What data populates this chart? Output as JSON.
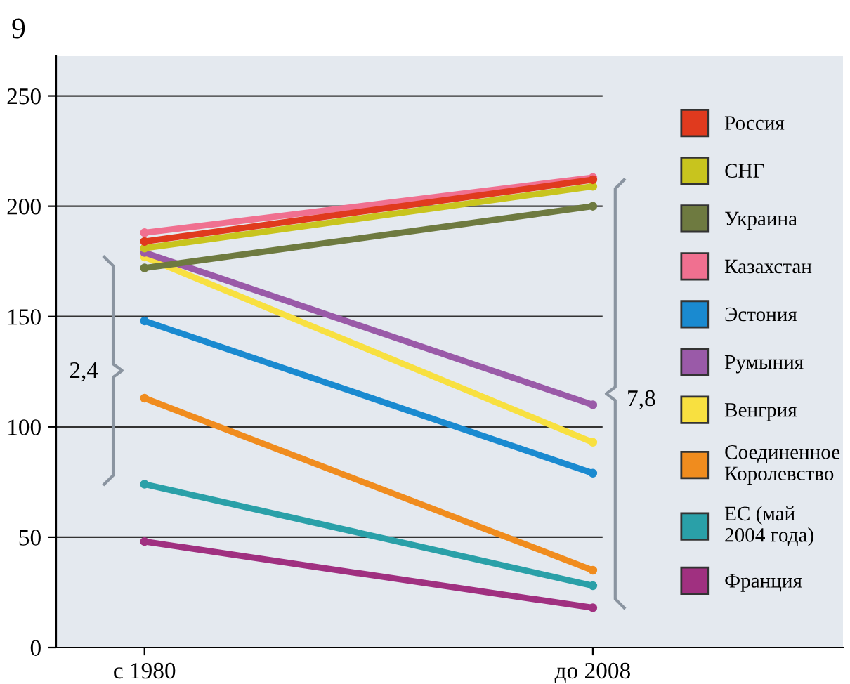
{
  "chart_data": {
    "type": "line",
    "categories": [
      "с 1980",
      "до 2008"
    ],
    "series": [
      {
        "name": "Россия",
        "color": "#e03a1e",
        "values": [
          184,
          212
        ]
      },
      {
        "name": "СНГ",
        "color": "#c8c41e",
        "values": [
          181,
          209
        ]
      },
      {
        "name": "Украина",
        "color": "#6e7a40",
        "values": [
          172,
          200
        ]
      },
      {
        "name": "Казахстан",
        "color": "#f07090",
        "values": [
          188,
          213
        ]
      },
      {
        "name": "Эстония",
        "color": "#1a8ad0",
        "values": [
          148,
          79
        ]
      },
      {
        "name": "Румыния",
        "color": "#9a5aa8",
        "values": [
          179,
          110
        ]
      },
      {
        "name": "Венгрия",
        "color": "#f8e040",
        "values": [
          177,
          93
        ]
      },
      {
        "name": "Соединенное\nКоролевство",
        "color": "#f08c1e",
        "values": [
          113,
          35
        ]
      },
      {
        "name": "ЕС (май\n2004 года)",
        "color": "#2aa0a8",
        "values": [
          74,
          28
        ]
      },
      {
        "name": "Франция",
        "color": "#a03080",
        "values": [
          48,
          18
        ]
      }
    ],
    "ylim": [
      0,
      268
    ],
    "yticks": [
      0,
      50,
      100,
      150,
      200,
      250
    ],
    "grid": "y",
    "legend": "right",
    "marker": "circle",
    "line_style": "solid",
    "annotations": [
      "9",
      "2,4",
      "7,8"
    ]
  }
}
